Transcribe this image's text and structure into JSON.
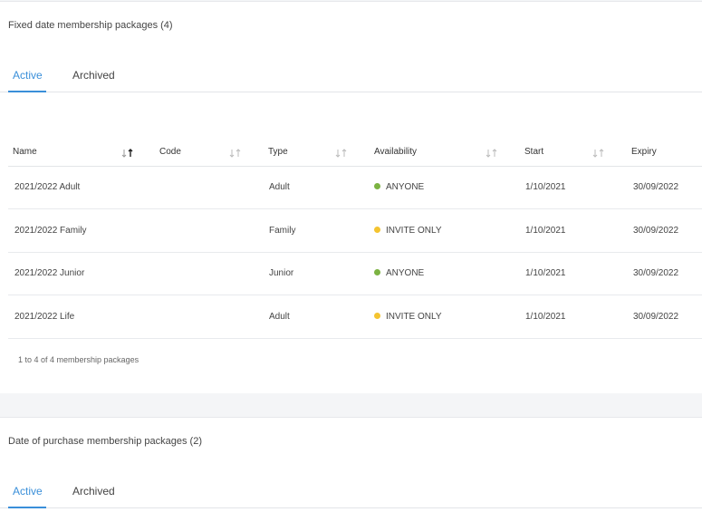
{
  "fixed_section": {
    "title": "Fixed date membership packages (4)",
    "tabs": {
      "active": "Active",
      "archived": "Archived"
    },
    "columns": {
      "name": "Name",
      "code": "Code",
      "type": "Type",
      "availability": "Availability",
      "start": "Start",
      "expiry": "Expiry"
    },
    "rows": [
      {
        "name": "2021/2022 Adult",
        "code": "",
        "type": "Adult",
        "availability": "ANYONE",
        "availability_color": "#7cb342",
        "start": "1/10/2021",
        "expiry": "30/09/2022"
      },
      {
        "name": "2021/2022 Family",
        "code": "",
        "type": "Family",
        "availability": "INVITE ONLY",
        "availability_color": "#f4c430",
        "start": "1/10/2021",
        "expiry": "30/09/2022"
      },
      {
        "name": "2021/2022 Junior",
        "code": "",
        "type": "Junior",
        "availability": "ANYONE",
        "availability_color": "#7cb342",
        "start": "1/10/2021",
        "expiry": "30/09/2022"
      },
      {
        "name": "2021/2022 Life",
        "code": "",
        "type": "Adult",
        "availability": "INVITE ONLY",
        "availability_color": "#f4c430",
        "start": "1/10/2021",
        "expiry": "30/09/2022"
      }
    ],
    "footer": "1 to 4 of 4 membership packages"
  },
  "purchase_section": {
    "title": "Date of purchase membership packages (2)",
    "tabs": {
      "active": "Active",
      "archived": "Archived"
    }
  },
  "colors": {
    "accent": "#3a8fd9",
    "anyone": "#7cb342",
    "invite_only": "#f4c430"
  }
}
